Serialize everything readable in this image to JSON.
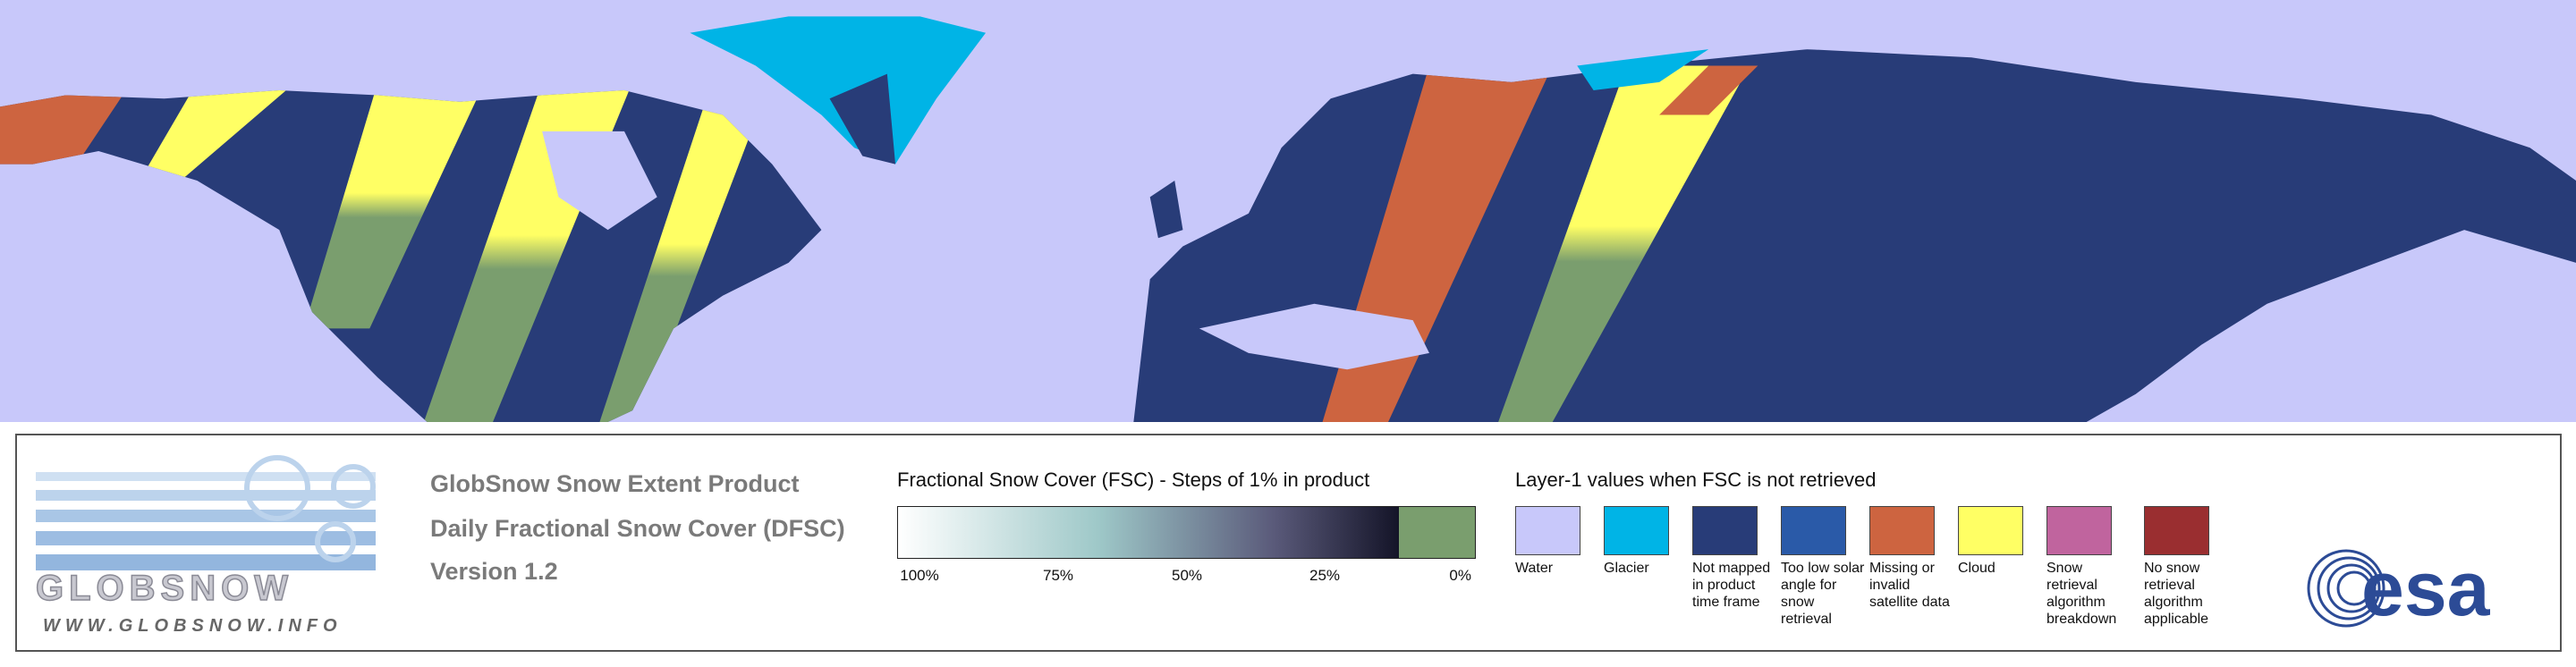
{
  "logo": {
    "name": "GLOBSNOW",
    "url": "WWW.GLOBSNOW.INFO"
  },
  "product": {
    "title": "GlobSnow Snow Extent Product",
    "subtitle": "Daily Fractional Snow Cover (DFSC)",
    "version": "Version 1.2"
  },
  "fsc_legend": {
    "title": "Fractional Snow Cover (FSC) - Steps of 1% in product",
    "labels": [
      "100%",
      "75%",
      "50%",
      "25%",
      "0%"
    ]
  },
  "layer1_legend": {
    "title": "Layer-1 values when FSC is not retrieved",
    "items": [
      {
        "label": "Water",
        "color": "#c8c8fa"
      },
      {
        "label": "Glacier",
        "color": "#00b4e6"
      },
      {
        "label": "Not mapped in product time frame",
        "color": "#283c78"
      },
      {
        "label": "Too low solar angle for snow retrieval",
        "color": "#2a5aa8"
      },
      {
        "label": "Missing or invalid satellite data",
        "color": "#cd6440"
      },
      {
        "label": "Cloud",
        "color": "#ffff64"
      },
      {
        "label": "Snow retrieval algorithm breakdown",
        "color": "#c0649e"
      },
      {
        "label": "No snow retrieval algorithm applicable",
        "color": "#9a2e30"
      }
    ]
  },
  "esa_logo": "esa"
}
